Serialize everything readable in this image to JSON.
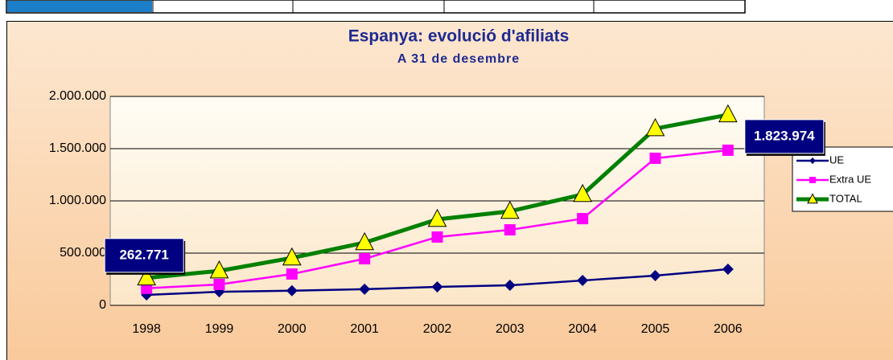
{
  "chart_data": {
    "type": "line",
    "title": "Espanya: evolució d'afiliats",
    "subtitle": "A 31 de desembre",
    "categories": [
      "1998",
      "1999",
      "2000",
      "2001",
      "2002",
      "2003",
      "2004",
      "2005",
      "2006"
    ],
    "series": [
      {
        "name": "UE",
        "color": "#000080",
        "marker": "diamond",
        "values": [
          100000,
          130000,
          140000,
          155000,
          177000,
          192000,
          238000,
          285000,
          346000
        ]
      },
      {
        "name": "Extra UE",
        "color": "#ff00ff",
        "marker": "square",
        "values": [
          163000,
          200000,
          300000,
          446000,
          654000,
          723000,
          830000,
          1408000,
          1485000
        ]
      },
      {
        "name": "TOTAL",
        "color": "#008000",
        "marker": "triangle",
        "values": [
          262771,
          330000,
          454000,
          600000,
          823000,
          900000,
          1062000,
          1692000,
          1823974
        ],
        "value_labels": [
          "262.771",
          null,
          null,
          null,
          null,
          null,
          null,
          null,
          "1.823.974"
        ]
      }
    ],
    "ylim": [
      0,
      2000000
    ],
    "yticks": [
      0,
      {
        "value": 500000,
        "label": "500.000"
      },
      {
        "value": 1000000,
        "label": "1.000.000"
      },
      {
        "value": 1500000,
        "label": "1.500.000"
      },
      {
        "value": 2000000,
        "label": "2.000.000"
      }
    ],
    "grid": true,
    "legend": "right"
  }
}
